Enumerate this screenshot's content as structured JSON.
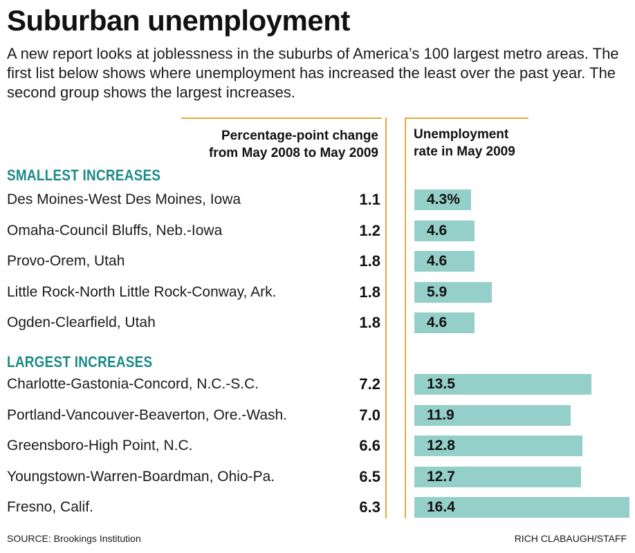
{
  "header": {
    "title": "Suburban unemployment",
    "subtitle": "A new report looks at joblessness in the suburbs of America’s 100 largest metro areas. The first list below shows where unemployment has increased the least over the past year. The second group shows the largest increases."
  },
  "columns": {
    "change_line1": "Percentage-point change",
    "change_line2": "from May 2008 to May 2009",
    "rate_line1": "Unemployment",
    "rate_line2": "rate in May 2009"
  },
  "footer": {
    "source": "SOURCE: Brookings Institution",
    "credit": "RICH CLABAUGH/STAFF"
  },
  "colors": {
    "accent_line": "#e8a93a",
    "section_heading": "#1a8a86",
    "bar_fill": "#95cfc9"
  },
  "chart_data": {
    "type": "bar",
    "orientation": "horizontal",
    "title": "Suburban unemployment",
    "value_unit": "%",
    "groups": [
      {
        "name": "SMALLEST INCREASES",
        "rows": [
          {
            "metro": "Des Moines-West Des Moines, Iowa",
            "change": "1.1",
            "rate": 4.3,
            "rate_label": "4.3%"
          },
          {
            "metro": "Omaha-Council Bluffs, Neb.-Iowa",
            "change": "1.2",
            "rate": 4.6,
            "rate_label": "4.6"
          },
          {
            "metro": "Provo-Orem, Utah",
            "change": "1.8",
            "rate": 4.6,
            "rate_label": "4.6"
          },
          {
            "metro": "Little Rock-North Little Rock-Conway, Ark.",
            "change": "1.8",
            "rate": 5.9,
            "rate_label": "5.9"
          },
          {
            "metro": "Ogden-Clearfield, Utah",
            "change": "1.8",
            "rate": 4.6,
            "rate_label": "4.6"
          }
        ]
      },
      {
        "name": "LARGEST INCREASES",
        "rows": [
          {
            "metro": "Charlotte-Gastonia-Concord, N.C.-S.C.",
            "change": "7.2",
            "rate": 13.5,
            "rate_label": "13.5"
          },
          {
            "metro": "Portland-Vancouver-Beaverton, Ore.-Wash.",
            "change": "7.0",
            "rate": 11.9,
            "rate_label": "11.9"
          },
          {
            "metro": "Greensboro-High Point, N.C.",
            "change": "6.6",
            "rate": 12.8,
            "rate_label": "12.8"
          },
          {
            "metro": "Youngstown-Warren-Boardman, Ohio-Pa.",
            "change": "6.5",
            "rate": 12.7,
            "rate_label": "12.7"
          },
          {
            "metro": "Fresno, Calif.",
            "change": "6.3",
            "rate": 16.4,
            "rate_label": "16.4"
          }
        ]
      }
    ]
  }
}
